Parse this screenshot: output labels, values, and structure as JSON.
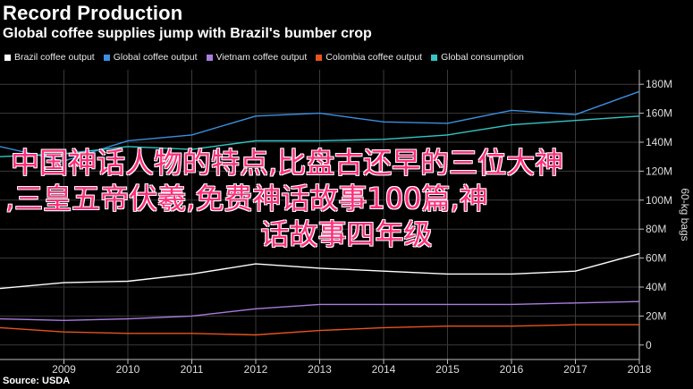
{
  "header": {
    "title": "Record Production",
    "subtitle": "Global coffee supplies jump with Brazil's bumber crop"
  },
  "source": "Source: USDA",
  "overlay": {
    "line1": "中国神话人物的特点,比盘古还早的三位大神",
    "line2": ",三皇五帝伏羲,免费神话故事100篇,神",
    "line3": "话故事四年级"
  },
  "chart_data": {
    "type": "line",
    "title": "Record Production",
    "subtitle": "Global coffee supplies jump with Brazil's bumber crop",
    "ylabel": "60-kg bags",
    "xlim": [
      2008,
      2018
    ],
    "ylim": [
      -10,
      190
    ],
    "x_ticks": [
      "2009",
      "2010",
      "2011",
      "2012",
      "2013",
      "2014",
      "2015",
      "2016",
      "2017",
      "2018"
    ],
    "y_ticks": [
      "0",
      "20M",
      "40M",
      "60M",
      "80M",
      "100M",
      "120M",
      "140M",
      "160M",
      "180M"
    ],
    "y_tick_values": [
      0,
      20,
      40,
      60,
      80,
      100,
      120,
      140,
      160,
      180
    ],
    "grid": true,
    "legend_position": "top",
    "x": [
      2008,
      2009,
      2010,
      2011,
      2012,
      2013,
      2014,
      2015,
      2016,
      2017,
      2018
    ],
    "series": [
      {
        "name": "Brazil coffee output",
        "color": "#ffffff",
        "values": [
          39,
          43,
          44,
          49,
          56,
          53,
          51,
          49,
          49,
          51,
          63
        ]
      },
      {
        "name": "Global coffee output",
        "color": "#3b8fe0",
        "values": [
          137,
          127,
          141,
          145,
          158,
          160,
          154,
          153,
          162,
          159,
          175
        ]
      },
      {
        "name": "Vietnam coffee output",
        "color": "#a97ce0",
        "values": [
          18,
          17,
          18,
          20,
          25,
          28,
          28,
          28,
          28,
          29,
          30
        ]
      },
      {
        "name": "Colombia coffee output",
        "color": "#e8541c",
        "values": [
          12,
          9,
          8,
          8,
          7,
          10,
          12,
          13,
          13,
          14,
          14
        ]
      },
      {
        "name": "Global consumption",
        "color": "#33c6c6",
        "values": [
          130,
          132,
          137,
          135,
          141,
          141,
          142,
          145,
          152,
          155,
          158
        ]
      }
    ]
  }
}
